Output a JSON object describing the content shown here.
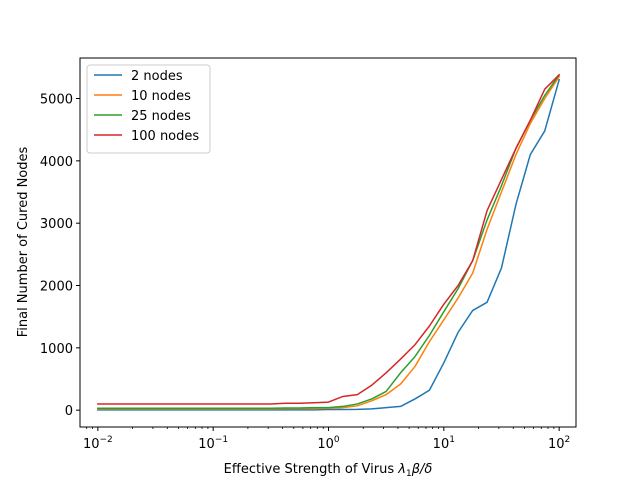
{
  "chart_data": {
    "type": "line",
    "title": "",
    "xlabel": "Effective Strength of Virus λ1β/δ",
    "xlabel_parts": {
      "pre": "Effective Strength of Virus ",
      "lambda": "λ",
      "sub": "1",
      "rest": "β/δ"
    },
    "ylabel": "Final Number of Cured Nodes",
    "xscale": "log",
    "xlim": [
      0.007,
      140
    ],
    "ylim": [
      -270,
      5650
    ],
    "xticks": [
      0.01,
      0.1,
      1,
      10,
      100
    ],
    "xtick_labels": [
      {
        "base": "10",
        "exp": "−2"
      },
      {
        "base": "10",
        "exp": "−1"
      },
      {
        "base": "10",
        "exp": "0"
      },
      {
        "base": "10",
        "exp": "1"
      },
      {
        "base": "10",
        "exp": "2"
      }
    ],
    "yticks": [
      0,
      1000,
      2000,
      3000,
      4000,
      5000
    ],
    "ytick_labels": [
      "0",
      "1000",
      "2000",
      "3000",
      "4000",
      "5000"
    ],
    "grid": false,
    "legend_position": "top-left",
    "x": [
      0.01,
      0.0133,
      0.0178,
      0.0237,
      0.0316,
      0.0422,
      0.0562,
      0.075,
      0.1,
      0.133,
      0.178,
      0.237,
      0.316,
      0.422,
      0.562,
      0.75,
      1,
      1.33,
      1.78,
      2.37,
      3.16,
      4.22,
      5.62,
      7.5,
      10,
      13.3,
      17.8,
      23.7,
      31.6,
      42.2,
      56.2,
      75,
      100
    ],
    "series": [
      {
        "name": "2 nodes",
        "color": "#1f77b4",
        "values": [
          5,
          5,
          5,
          5,
          5,
          5,
          5,
          5,
          5,
          5,
          5,
          5,
          5,
          5,
          5,
          5,
          10,
          10,
          12,
          20,
          40,
          60,
          180,
          320,
          760,
          1250,
          1600,
          1730,
          2280,
          3300,
          4100,
          4480,
          5300
        ]
      },
      {
        "name": "10 nodes",
        "color": "#ff7f0e",
        "values": [
          20,
          20,
          20,
          20,
          20,
          20,
          20,
          20,
          20,
          20,
          20,
          20,
          20,
          25,
          25,
          25,
          30,
          40,
          70,
          150,
          250,
          420,
          700,
          1100,
          1450,
          1800,
          2200,
          2900,
          3500,
          4100,
          4600,
          5000,
          5350
        ]
      },
      {
        "name": "25 nodes",
        "color": "#2ca02c",
        "values": [
          30,
          30,
          30,
          30,
          30,
          30,
          30,
          30,
          30,
          30,
          30,
          30,
          30,
          35,
          35,
          40,
          40,
          60,
          100,
          180,
          300,
          600,
          860,
          1200,
          1580,
          1950,
          2400,
          3050,
          3600,
          4200,
          4650,
          5050,
          5380
        ]
      },
      {
        "name": "100 nodes",
        "color": "#d62728",
        "values": [
          100,
          100,
          100,
          100,
          100,
          100,
          100,
          100,
          100,
          100,
          100,
          100,
          100,
          110,
          110,
          120,
          130,
          220,
          250,
          400,
          600,
          820,
          1050,
          1350,
          1700,
          2000,
          2400,
          3200,
          3700,
          4200,
          4650,
          5150,
          5380
        ]
      }
    ]
  }
}
